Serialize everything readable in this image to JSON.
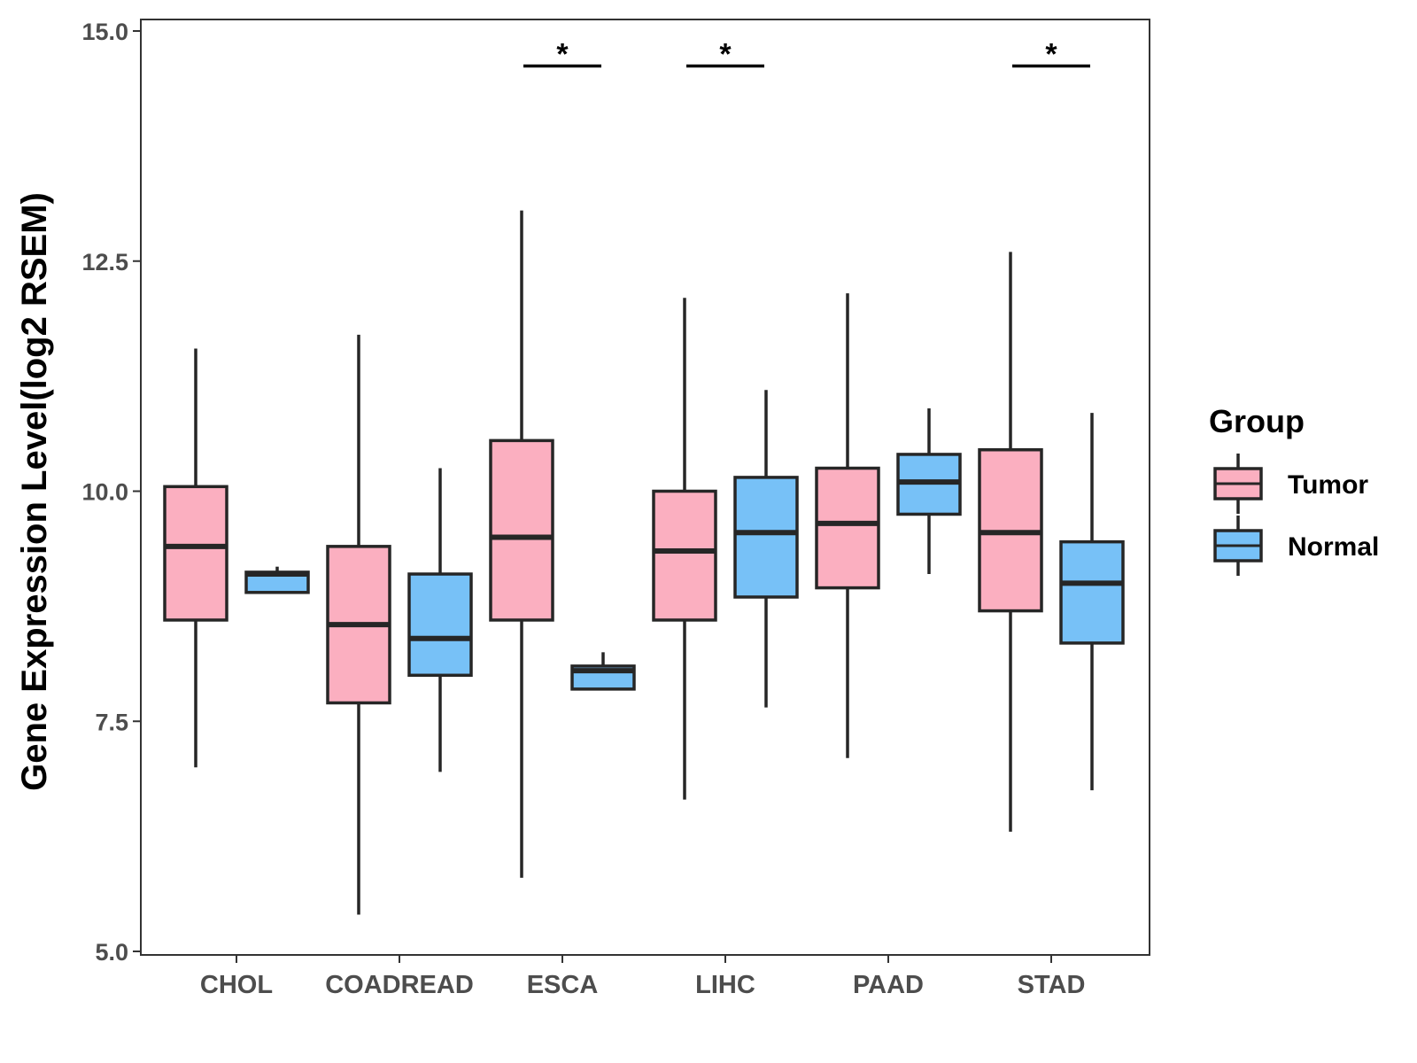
{
  "chart_data": {
    "type": "boxplot",
    "title": "",
    "xlabel": "",
    "ylabel": "Gene Expression Level(log2 RSEM)",
    "ylim": [
      5.0,
      15.0
    ],
    "yticks": [
      "5.0",
      "7.5",
      "10.0",
      "12.5",
      "15.0"
    ],
    "categories": [
      "CHOL",
      "COADREAD",
      "ESCA",
      "LIHC",
      "PAAD",
      "STAD"
    ],
    "legend": {
      "title": "Group",
      "position": "right",
      "entries": [
        "Tumor",
        "Normal"
      ]
    },
    "colors": {
      "Tumor": "#FBAFC0",
      "Normal": "#77C1F7",
      "line": "#262626"
    },
    "series": [
      {
        "name": "Tumor",
        "boxes": [
          {
            "whisker_low": 7.0,
            "q1": 8.6,
            "median": 9.4,
            "q3": 10.05,
            "whisker_high": 11.55
          },
          {
            "whisker_low": 5.4,
            "q1": 7.7,
            "median": 8.55,
            "q3": 9.4,
            "whisker_high": 11.7
          },
          {
            "whisker_low": 5.8,
            "q1": 8.6,
            "median": 9.5,
            "q3": 10.55,
            "whisker_high": 13.05
          },
          {
            "whisker_low": 6.65,
            "q1": 8.6,
            "median": 9.35,
            "q3": 10.0,
            "whisker_high": 12.1
          },
          {
            "whisker_low": 7.1,
            "q1": 8.95,
            "median": 9.65,
            "q3": 10.25,
            "whisker_high": 12.15
          },
          {
            "whisker_low": 6.3,
            "q1": 8.7,
            "median": 9.55,
            "q3": 10.45,
            "whisker_high": 12.6
          }
        ]
      },
      {
        "name": "Normal",
        "boxes": [
          {
            "whisker_low": 8.9,
            "q1": 8.9,
            "median": 9.1,
            "q3": 9.12,
            "whisker_high": 9.18
          },
          {
            "whisker_low": 6.95,
            "q1": 8.0,
            "median": 8.4,
            "q3": 9.1,
            "whisker_high": 10.25
          },
          {
            "whisker_low": 7.85,
            "q1": 7.85,
            "median": 8.05,
            "q3": 8.1,
            "whisker_high": 8.25
          },
          {
            "whisker_low": 7.65,
            "q1": 8.85,
            "median": 9.55,
            "q3": 10.15,
            "whisker_high": 11.1
          },
          {
            "whisker_low": 9.1,
            "q1": 9.75,
            "median": 10.1,
            "q3": 10.4,
            "whisker_high": 10.9
          },
          {
            "whisker_low": 6.75,
            "q1": 8.35,
            "median": 9.0,
            "q3": 9.45,
            "whisker_high": 10.85
          }
        ]
      }
    ],
    "significance": [
      {
        "category": "ESCA",
        "label": "*",
        "y": 14.62
      },
      {
        "category": "LIHC",
        "label": "*",
        "y": 14.62
      },
      {
        "category": "STAD",
        "label": "*",
        "y": 14.62
      }
    ]
  }
}
